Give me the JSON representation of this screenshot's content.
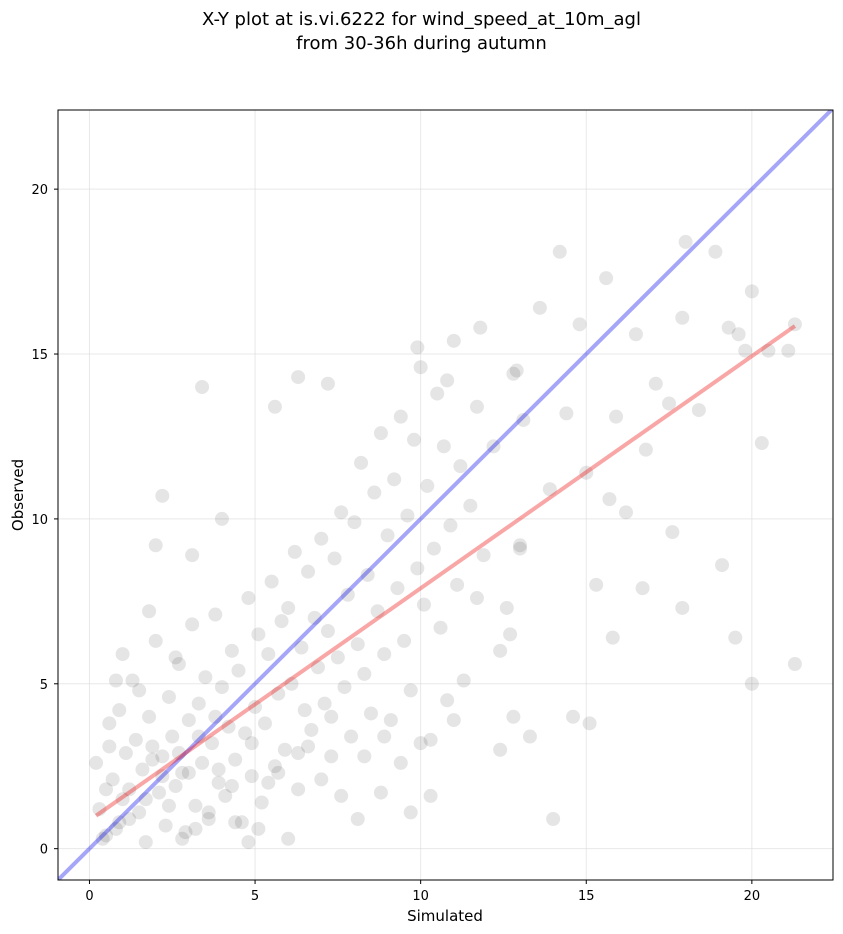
{
  "chart_data": {
    "type": "scatter",
    "title_line1": "X-Y plot at is.vi.6222 for wind_speed_at_10m_agl",
    "title_line2": "from 30-36h during autumn",
    "xlabel": "Simulated",
    "ylabel": "Observed",
    "xlim": [
      -0.95,
      22.45
    ],
    "ylim": [
      -0.95,
      22.4
    ],
    "xticks": [
      0,
      5,
      10,
      15,
      20
    ],
    "yticks": [
      0,
      5,
      10,
      15,
      20
    ],
    "grid": true,
    "point_color": "#000000",
    "point_alpha": 0.1,
    "identity_line": {
      "color": "#0000ee",
      "alpha": 0.35,
      "from": [
        -0.95,
        -0.95
      ],
      "to": [
        22.45,
        22.45
      ]
    },
    "regression_line": {
      "color": "#ee0000",
      "alpha": 0.35,
      "from": [
        0.2,
        1.0
      ],
      "to": [
        21.3,
        15.85
      ]
    },
    "points": [
      [
        0.2,
        2.6
      ],
      [
        0.3,
        1.2
      ],
      [
        0.4,
        0.3
      ],
      [
        0.5,
        1.8
      ],
      [
        0.6,
        3.8
      ],
      [
        0.7,
        2.1
      ],
      [
        0.8,
        0.6
      ],
      [
        0.9,
        4.2
      ],
      [
        1.0,
        1.5
      ],
      [
        1.1,
        2.9
      ],
      [
        1.2,
        0.9
      ],
      [
        1.3,
        5.1
      ],
      [
        1.4,
        3.3
      ],
      [
        1.5,
        1.1
      ],
      [
        1.6,
        2.4
      ],
      [
        1.7,
        0.2
      ],
      [
        1.8,
        4.0
      ],
      [
        1.9,
        3.1
      ],
      [
        2.0,
        6.3
      ],
      [
        2.1,
        1.7
      ],
      [
        2.2,
        2.8
      ],
      [
        2.3,
        0.7
      ],
      [
        2.4,
        4.6
      ],
      [
        2.5,
        3.4
      ],
      [
        2.6,
        1.9
      ],
      [
        2.7,
        5.6
      ],
      [
        2.8,
        2.3
      ],
      [
        2.9,
        0.5
      ],
      [
        3.0,
        3.9
      ],
      [
        3.1,
        6.8
      ],
      [
        3.2,
        1.3
      ],
      [
        3.3,
        4.4
      ],
      [
        3.4,
        2.6
      ],
      [
        3.5,
        5.2
      ],
      [
        3.6,
        0.9
      ],
      [
        3.7,
        3.2
      ],
      [
        3.8,
        7.1
      ],
      [
        3.9,
        2.0
      ],
      [
        4.0,
        4.9
      ],
      [
        4.1,
        1.6
      ],
      [
        4.2,
        3.7
      ],
      [
        4.3,
        6.0
      ],
      [
        4.4,
        2.7
      ],
      [
        4.5,
        5.4
      ],
      [
        4.6,
        0.8
      ],
      [
        4.7,
        3.5
      ],
      [
        4.8,
        7.6
      ],
      [
        4.9,
        2.2
      ],
      [
        5.0,
        4.3
      ],
      [
        5.1,
        6.5
      ],
      [
        5.2,
        1.4
      ],
      [
        5.3,
        3.8
      ],
      [
        5.4,
        5.9
      ],
      [
        5.5,
        8.1
      ],
      [
        5.6,
        2.5
      ],
      [
        5.7,
        4.7
      ],
      [
        5.8,
        6.9
      ],
      [
        5.9,
        3.0
      ],
      [
        6.0,
        7.3
      ],
      [
        6.1,
        5.0
      ],
      [
        6.2,
        9.0
      ],
      [
        6.3,
        2.9
      ],
      [
        6.4,
        6.1
      ],
      [
        6.5,
        4.2
      ],
      [
        6.6,
        8.4
      ],
      [
        6.7,
        3.6
      ],
      [
        6.8,
        7.0
      ],
      [
        6.9,
        5.5
      ],
      [
        7.0,
        9.4
      ],
      [
        7.1,
        4.4
      ],
      [
        7.2,
        6.6
      ],
      [
        7.3,
        2.8
      ],
      [
        7.4,
        8.8
      ],
      [
        7.5,
        5.8
      ],
      [
        7.6,
        10.2
      ],
      [
        7.7,
        4.9
      ],
      [
        7.8,
        7.7
      ],
      [
        7.9,
        3.4
      ],
      [
        8.0,
        9.9
      ],
      [
        8.1,
        6.2
      ],
      [
        8.2,
        11.7
      ],
      [
        8.3,
        5.3
      ],
      [
        8.4,
        8.3
      ],
      [
        8.5,
        4.1
      ],
      [
        8.6,
        10.8
      ],
      [
        8.7,
        7.2
      ],
      [
        8.8,
        12.6
      ],
      [
        8.9,
        5.9
      ],
      [
        9.0,
        9.5
      ],
      [
        9.1,
        3.9
      ],
      [
        9.2,
        11.2
      ],
      [
        9.3,
        7.9
      ],
      [
        9.4,
        13.1
      ],
      [
        9.5,
        6.3
      ],
      [
        9.6,
        10.1
      ],
      [
        9.7,
        4.8
      ],
      [
        9.8,
        12.4
      ],
      [
        9.9,
        8.5
      ],
      [
        10.0,
        14.6
      ],
      [
        10.1,
        7.4
      ],
      [
        10.2,
        11.0
      ],
      [
        10.3,
        3.3
      ],
      [
        10.4,
        9.1
      ],
      [
        10.5,
        13.8
      ],
      [
        10.6,
        6.7
      ],
      [
        10.7,
        12.2
      ],
      [
        10.8,
        4.5
      ],
      [
        10.9,
        9.8
      ],
      [
        11.0,
        15.4
      ],
      [
        11.1,
        8.0
      ],
      [
        11.2,
        11.6
      ],
      [
        11.3,
        5.1
      ],
      [
        11.5,
        10.4
      ],
      [
        11.7,
        13.4
      ],
      [
        11.9,
        8.9
      ],
      [
        12.2,
        12.2
      ],
      [
        12.4,
        6.0
      ],
      [
        12.6,
        7.3
      ],
      [
        12.8,
        14.4
      ],
      [
        13.0,
        9.2
      ],
      [
        13.3,
        3.4
      ],
      [
        13.6,
        16.4
      ],
      [
        13.9,
        10.9
      ],
      [
        14.2,
        18.1
      ],
      [
        14.4,
        13.2
      ],
      [
        14.6,
        4.0
      ],
      [
        14.8,
        15.9
      ],
      [
        15.0,
        11.4
      ],
      [
        15.3,
        8.0
      ],
      [
        15.6,
        17.3
      ],
      [
        15.9,
        13.1
      ],
      [
        16.2,
        10.2
      ],
      [
        16.5,
        15.6
      ],
      [
        16.8,
        12.1
      ],
      [
        17.1,
        14.1
      ],
      [
        17.5,
        13.5
      ],
      [
        17.9,
        16.1
      ],
      [
        18.0,
        18.4
      ],
      [
        18.4,
        13.3
      ],
      [
        18.9,
        18.1
      ],
      [
        19.3,
        15.8
      ],
      [
        19.5,
        6.4
      ],
      [
        19.6,
        15.6
      ],
      [
        19.8,
        15.1
      ],
      [
        20.0,
        16.9
      ],
      [
        20.3,
        12.3
      ],
      [
        20.5,
        15.1
      ],
      [
        21.1,
        15.1
      ],
      [
        21.3,
        15.9
      ],
      [
        21.3,
        5.6
      ],
      [
        16.7,
        7.9
      ],
      [
        17.9,
        7.3
      ],
      [
        19.1,
        8.6
      ],
      [
        20.0,
        5.0
      ],
      [
        15.8,
        6.4
      ],
      [
        14.0,
        0.9
      ],
      [
        15.1,
        3.8
      ],
      [
        17.6,
        9.6
      ],
      [
        15.7,
        10.6
      ],
      [
        12.7,
        6.5
      ],
      [
        3.4,
        14.0
      ],
      [
        2.0,
        9.2
      ],
      [
        2.2,
        10.7
      ],
      [
        1.8,
        7.2
      ],
      [
        3.1,
        8.9
      ],
      [
        4.0,
        10.0
      ],
      [
        5.6,
        13.4
      ],
      [
        6.3,
        14.3
      ],
      [
        7.2,
        14.1
      ],
      [
        9.9,
        15.2
      ],
      [
        11.8,
        15.8
      ],
      [
        10.8,
        14.2
      ],
      [
        12.9,
        14.5
      ],
      [
        13.1,
        13.0
      ],
      [
        0.5,
        0.4
      ],
      [
        1.2,
        1.8
      ],
      [
        2.8,
        0.3
      ],
      [
        3.6,
        1.1
      ],
      [
        4.8,
        0.2
      ],
      [
        5.1,
        0.6
      ],
      [
        6.0,
        0.3
      ],
      [
        6.3,
        1.8
      ],
      [
        7.0,
        2.1
      ],
      [
        7.6,
        1.6
      ],
      [
        8.1,
        0.9
      ],
      [
        8.8,
        1.7
      ],
      [
        9.7,
        1.1
      ],
      [
        10.3,
        1.6
      ],
      [
        0.8,
        5.1
      ],
      [
        0.6,
        3.1
      ],
      [
        1.5,
        4.8
      ],
      [
        1.0,
        5.9
      ],
      [
        2.6,
        5.8
      ],
      [
        3.0,
        2.3
      ],
      [
        3.3,
        3.4
      ],
      [
        4.4,
        0.8
      ],
      [
        5.7,
        2.3
      ],
      [
        1.9,
        2.7
      ],
      [
        2.4,
        1.3
      ],
      [
        3.9,
        2.4
      ],
      [
        0.9,
        0.8
      ],
      [
        1.7,
        1.5
      ],
      [
        2.2,
        2.2
      ],
      [
        2.7,
        2.9
      ],
      [
        3.2,
        0.6
      ],
      [
        3.8,
        4.0
      ],
      [
        4.3,
        1.9
      ],
      [
        4.9,
        3.2
      ],
      [
        5.4,
        2.0
      ],
      [
        6.6,
        3.1
      ],
      [
        7.3,
        4.0
      ],
      [
        8.3,
        2.8
      ],
      [
        8.9,
        3.4
      ],
      [
        9.4,
        2.6
      ],
      [
        10.0,
        3.2
      ],
      [
        11.0,
        3.9
      ],
      [
        12.4,
        3.0
      ],
      [
        12.8,
        4.0
      ],
      [
        11.7,
        7.6
      ],
      [
        13.0,
        9.1
      ]
    ]
  },
  "tick_labels": {
    "x": [
      "0",
      "5",
      "10",
      "15",
      "20"
    ],
    "y": [
      "0",
      "5",
      "10",
      "15",
      "20"
    ]
  }
}
